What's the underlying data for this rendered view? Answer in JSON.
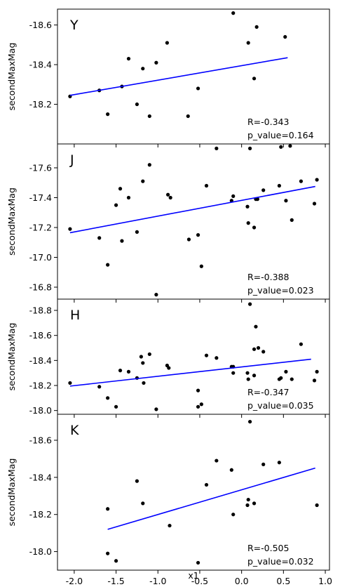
{
  "chart_data": {
    "type": "scatter",
    "xlabel": "x1",
    "ylabel": "secondMaxMag",
    "x_ticks": [
      "-2.0",
      "-1.5",
      "-1.0",
      "-0.5",
      "0.0",
      "0.5",
      "1.0"
    ],
    "xlim": [
      -2.2,
      1.05
    ],
    "panels": [
      {
        "band": "Y",
        "ylim": [
          -18.0,
          -18.68
        ],
        "y_ticks": [
          -18.2,
          -18.4,
          -18.6
        ],
        "y_tick_labels": [
          "-18.2",
          "-18.4",
          "-18.6"
        ],
        "points": [
          [
            -2.05,
            -18.24
          ],
          [
            -1.7,
            -18.27
          ],
          [
            -1.6,
            -18.15
          ],
          [
            -1.43,
            -18.29
          ],
          [
            -1.35,
            -18.43
          ],
          [
            -1.25,
            -18.2
          ],
          [
            -1.18,
            -18.38
          ],
          [
            -1.1,
            -18.14
          ],
          [
            -1.02,
            -18.41
          ],
          [
            -0.89,
            -18.51
          ],
          [
            -0.64,
            -18.14
          ],
          [
            -0.52,
            -18.28
          ],
          [
            -0.1,
            -18.66
          ],
          [
            0.08,
            -18.51
          ],
          [
            0.15,
            -18.33
          ],
          [
            0.18,
            -18.59
          ],
          [
            0.52,
            -18.54
          ],
          [
            0.58,
            -17.99
          ]
        ],
        "fit": {
          "x": [
            -2.05,
            0.55
          ],
          "y": [
            -18.245,
            -18.435
          ]
        },
        "r_label": "R=-0.343",
        "p_label": "p_value=0.164"
      },
      {
        "band": "J",
        "ylim": [
          -16.72,
          -17.76
        ],
        "y_ticks": [
          -16.8,
          -17.0,
          -17.2,
          -17.4,
          -17.6
        ],
        "y_tick_labels": [
          "-16.8",
          "-17.0",
          "-17.2",
          "-17.4",
          "-17.6"
        ],
        "points": [
          [
            -2.05,
            -17.19
          ],
          [
            -1.7,
            -17.13
          ],
          [
            -1.6,
            -16.95
          ],
          [
            -1.5,
            -17.35
          ],
          [
            -1.45,
            -17.46
          ],
          [
            -1.43,
            -17.11
          ],
          [
            -1.35,
            -17.4
          ],
          [
            -1.25,
            -17.17
          ],
          [
            -1.18,
            -17.51
          ],
          [
            -1.1,
            -17.62
          ],
          [
            -1.02,
            -16.75
          ],
          [
            -0.88,
            -17.42
          ],
          [
            -0.85,
            -17.4
          ],
          [
            -0.63,
            -17.12
          ],
          [
            -0.52,
            -17.15
          ],
          [
            -0.48,
            -16.94
          ],
          [
            -0.42,
            -17.48
          ],
          [
            -0.3,
            -17.73
          ],
          [
            -0.12,
            -17.38
          ],
          [
            -0.1,
            -17.41
          ],
          [
            0.07,
            -17.34
          ],
          [
            0.08,
            -17.23
          ],
          [
            0.1,
            -17.73
          ],
          [
            0.15,
            -17.2
          ],
          [
            0.17,
            -17.39
          ],
          [
            0.19,
            -17.39
          ],
          [
            0.26,
            -17.45
          ],
          [
            0.45,
            -17.48
          ],
          [
            0.47,
            -17.74
          ],
          [
            0.53,
            -17.38
          ],
          [
            0.6,
            -17.25
          ],
          [
            0.71,
            -17.51
          ],
          [
            0.87,
            -17.36
          ],
          [
            0.9,
            -17.52
          ]
        ],
        "fit": {
          "x": [
            -2.05,
            0.88
          ],
          "y": [
            -17.165,
            -17.475
          ]
        },
        "r_label": "R=-0.388",
        "p_label": "p_value=0.023"
      },
      {
        "band": "H",
        "ylim": [
          -17.97,
          -18.89
        ],
        "y_ticks": [
          -18.0,
          -18.2,
          -18.4,
          -18.6,
          -18.8
        ],
        "y_tick_labels": [
          "-18.0",
          "-18.2",
          "-18.4",
          "-18.6",
          "-18.8"
        ],
        "points": [
          [
            -2.05,
            -18.22
          ],
          [
            -1.7,
            -18.19
          ],
          [
            -1.6,
            -18.1
          ],
          [
            -1.5,
            -18.03
          ],
          [
            -1.45,
            -18.32
          ],
          [
            -1.35,
            -18.31
          ],
          [
            -1.25,
            -18.26
          ],
          [
            -1.2,
            -18.43
          ],
          [
            -1.18,
            -18.38
          ],
          [
            -1.17,
            -18.22
          ],
          [
            -1.1,
            -18.45
          ],
          [
            -1.02,
            -18.01
          ],
          [
            -0.89,
            -18.36
          ],
          [
            -0.87,
            -18.34
          ],
          [
            -0.52,
            -18.16
          ],
          [
            -0.52,
            -18.03
          ],
          [
            -0.48,
            -18.05
          ],
          [
            -0.42,
            -18.44
          ],
          [
            -0.3,
            -18.42
          ],
          [
            -0.12,
            -18.35
          ],
          [
            -0.1,
            -18.35
          ],
          [
            -0.1,
            -18.3
          ],
          [
            0.07,
            -18.3
          ],
          [
            0.08,
            -18.25
          ],
          [
            0.1,
            -18.85
          ],
          [
            0.15,
            -18.49
          ],
          [
            0.15,
            -18.28
          ],
          [
            0.17,
            -18.67
          ],
          [
            0.2,
            -18.5
          ],
          [
            0.26,
            -18.47
          ],
          [
            0.45,
            -18.25
          ],
          [
            0.47,
            -18.26
          ],
          [
            0.53,
            -18.31
          ],
          [
            0.6,
            -18.25
          ],
          [
            0.71,
            -18.53
          ],
          [
            0.87,
            -18.24
          ],
          [
            0.9,
            -18.31
          ]
        ],
        "fit": {
          "x": [
            -2.05,
            0.83
          ],
          "y": [
            -18.195,
            -18.41
          ]
        },
        "r_label": "R=-0.347",
        "p_label": "p_value=0.035"
      },
      {
        "band": "K",
        "ylim": [
          -17.9,
          -18.74
        ],
        "y_ticks": [
          -18.0,
          -18.2,
          -18.4,
          -18.6
        ],
        "y_tick_labels": [
          "-18.0",
          "-18.2",
          "-18.4",
          "-18.6"
        ],
        "points": [
          [
            -1.6,
            -17.99
          ],
          [
            -1.6,
            -18.23
          ],
          [
            -1.5,
            -17.95
          ],
          [
            -1.25,
            -18.38
          ],
          [
            -1.18,
            -18.26
          ],
          [
            -0.86,
            -18.14
          ],
          [
            -0.52,
            -17.94
          ],
          [
            -0.42,
            -18.36
          ],
          [
            -0.3,
            -18.49
          ],
          [
            -0.12,
            -18.44
          ],
          [
            -0.1,
            -18.2
          ],
          [
            0.07,
            -18.25
          ],
          [
            0.08,
            -18.28
          ],
          [
            0.1,
            -18.7
          ],
          [
            0.15,
            -18.26
          ],
          [
            0.26,
            -18.47
          ],
          [
            0.45,
            -18.48
          ],
          [
            0.9,
            -18.25
          ]
        ],
        "fit": {
          "x": [
            -1.6,
            0.88
          ],
          "y": [
            -18.12,
            -18.45
          ]
        },
        "r_label": "R=-0.505",
        "p_label": "p_value=0.032"
      }
    ],
    "colors": {
      "points": "#000000",
      "fit": "#0000ff",
      "frame": "#000000"
    },
    "grid": false
  }
}
